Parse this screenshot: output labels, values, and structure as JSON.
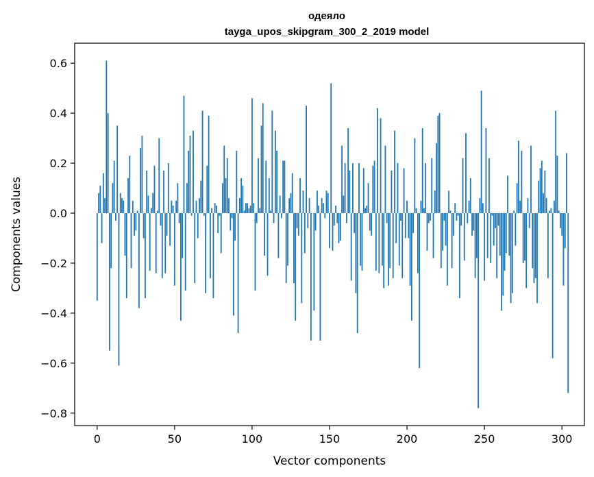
{
  "chart_data": {
    "type": "bar",
    "title": "одеяло",
    "subtitle": "tayga_upos_skipgram_300_2_2019 model",
    "xlabel": "Vector components",
    "ylabel": "Components values",
    "xlim": [
      -14.5,
      314.5
    ],
    "ylim": [
      -0.85,
      0.68
    ],
    "xticks": [
      0,
      50,
      100,
      150,
      200,
      250,
      300
    ],
    "yticks": [
      -0.8,
      -0.6,
      -0.4,
      -0.2,
      0.0,
      0.2,
      0.4,
      0.6
    ],
    "ytick_labels": [
      "−0.8",
      "−0.6",
      "−0.4",
      "−0.2",
      "0.0",
      "0.2",
      "0.4",
      "0.6"
    ],
    "bar_color": "#1f77b4",
    "series": [
      {
        "name": "одеяло",
        "values": [
          -0.35,
          0.08,
          0.11,
          -0.12,
          0.16,
          0.06,
          0.61,
          0.4,
          -0.55,
          -0.22,
          0.12,
          0.21,
          -0.03,
          0.35,
          -0.61,
          0.08,
          0.06,
          0.05,
          -0.17,
          -0.34,
          0.14,
          0.23,
          -0.22,
          0.05,
          -0.09,
          -0.07,
          0.01,
          -0.38,
          0.26,
          0.31,
          -0.1,
          -0.34,
          0.17,
          0.07,
          -0.23,
          0.02,
          0.08,
          0.19,
          -0.24,
          0.01,
          0.3,
          -0.05,
          -0.26,
          0.17,
          -0.24,
          -0.09,
          0.2,
          -0.13,
          0.05,
          0.03,
          -0.29,
          0.05,
          0.12,
          -0.04,
          -0.43,
          -0.18,
          0.47,
          -0.31,
          0.12,
          0.25,
          0.31,
          -0.01,
          0.33,
          -0.28,
          0.05,
          -0.1,
          0.06,
          0.13,
          0.41,
          -0.01,
          -0.32,
          0.19,
          0.39,
          -0.26,
          0.02,
          -0.34,
          0.04,
          0.03,
          -0.08,
          -0.01,
          -0.16,
          0.12,
          0.27,
          0.14,
          0.22,
          0.06,
          -0.07,
          -0.02,
          -0.41,
          -0.11,
          0.25,
          -0.48,
          0.06,
          0.14,
          0.11,
          0.01,
          0.04,
          0.04,
          0.02,
          0.03,
          0.46,
          0.04,
          -0.31,
          -0.04,
          0.22,
          0.02,
          0.35,
          0.44,
          -0.17,
          0.21,
          -0.25,
          0.14,
          0.01,
          0.41,
          -0.04,
          0.33,
          0.25,
          -0.18,
          0.07,
          -0.02,
          0.21,
          0.21,
          -0.28,
          -0.21,
          0.06,
          0.08,
          0.16,
          -0.28,
          -0.43,
          -0.06,
          -0.09,
          0.14,
          -0.36,
          0.09,
          -0.16,
          0.43,
          -0.06,
          0.06,
          -0.51,
          0.0,
          -0.39,
          -0.07,
          0.09,
          0.03,
          -0.51,
          0.06,
          0.04,
          -0.02,
          0.09,
          0.08,
          -0.14,
          0.52,
          -0.15,
          -0.05,
          0.03,
          -0.04,
          -0.12,
          -0.11,
          0.27,
          0.07,
          0.2,
          -0.04,
          0.34,
          0.17,
          -0.27,
          0.2,
          -0.08,
          -0.32,
          -0.48,
          0.2,
          -0.21,
          -0.23,
          0.18,
          0.02,
          0.03,
          0.12,
          -0.07,
          -0.09,
          0.19,
          0.21,
          -0.23,
          0.42,
          -0.24,
          0.38,
          -0.21,
          -0.3,
          0.27,
          -0.04,
          -0.29,
          -0.22,
          0.17,
          -0.26,
          0.33,
          -0.12,
          0.2,
          -0.21,
          -0.03,
          -0.26,
          0.18,
          -0.1,
          0.05,
          -0.1,
          -0.29,
          -0.43,
          -0.08,
          0.3,
          0.02,
          -0.24,
          -0.62,
          0.05,
          0.34,
          0.02,
          0.2,
          -0.15,
          -0.04,
          -0.03,
          0.22,
          -0.18,
          0.09,
          0.28,
          0.39,
          0.4,
          -0.22,
          -0.15,
          -0.03,
          -0.13,
          -0.29,
          0.09,
          0.01,
          -0.22,
          -0.09,
          0.04,
          -0.03,
          -0.01,
          -0.34,
          -0.05,
          0.22,
          -0.19,
          0.32,
          -0.04,
          0.05,
          0.14,
          -0.09,
          -0.07,
          -0.26,
          -0.18,
          -0.78,
          0.06,
          0.49,
          0.04,
          -0.27,
          0.34,
          -0.18,
          0.22,
          -0.2,
          -0.01,
          -0.13,
          -0.06,
          -0.26,
          -0.05,
          -0.17,
          -0.39,
          -0.33,
          -0.23,
          -0.16,
          0.15,
          -0.17,
          -0.36,
          -0.32,
          0.01,
          -0.13,
          0.12,
          0.29,
          0.05,
          0.25,
          -0.2,
          -0.19,
          -0.3,
          0.06,
          -0.06,
          0.27,
          -0.22,
          -0.28,
          -0.26,
          -0.36,
          0.13,
          0.18,
          0.21,
          0.08,
          0.17,
          0.06,
          -0.26,
          0.01,
          0.02,
          -0.58,
          0.05,
          0.41,
          0.23,
          0.01,
          -0.06,
          -0.09,
          -0.29,
          -0.14,
          0.24,
          -0.72
        ]
      }
    ],
    "grid": false,
    "legend": "none"
  }
}
